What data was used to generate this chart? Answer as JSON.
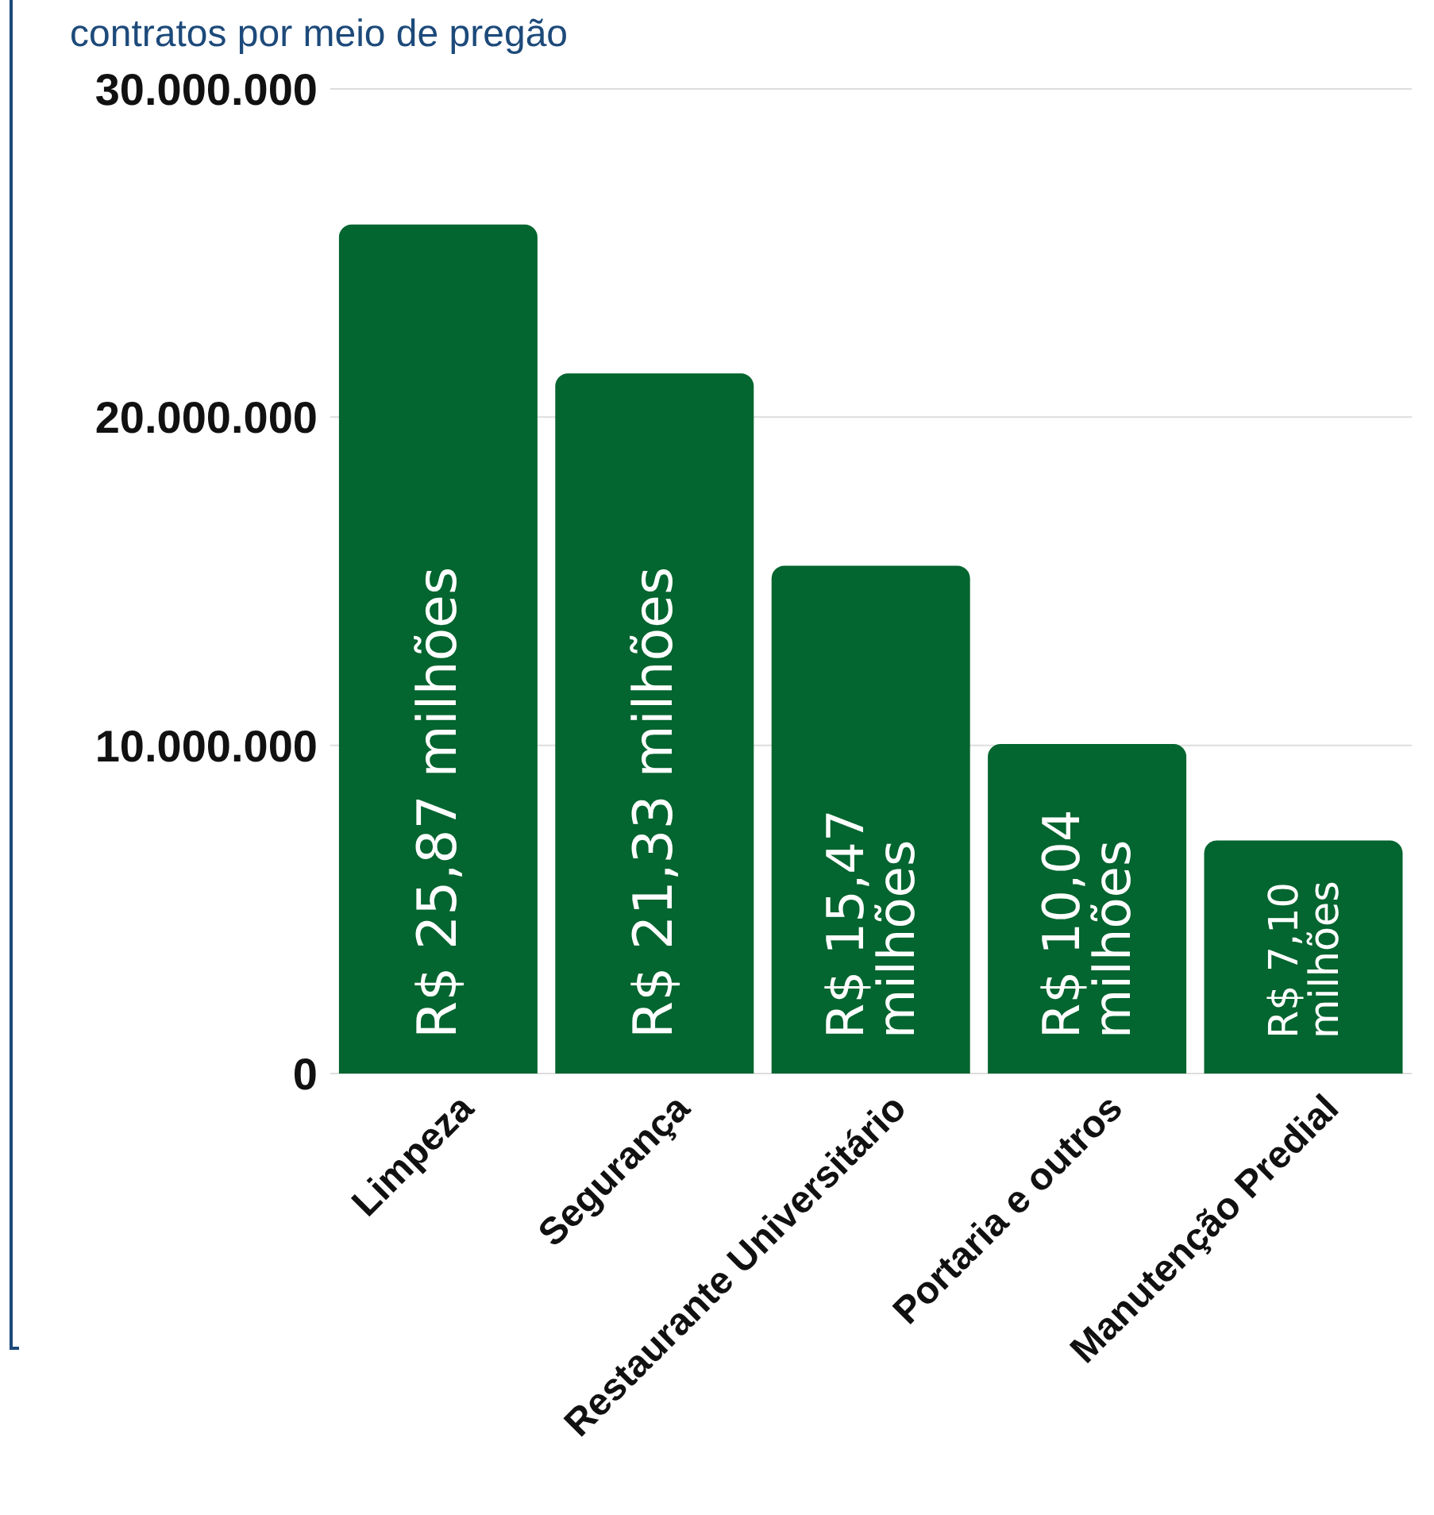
{
  "chart_data": {
    "type": "bar",
    "title": "contratos por meio de pregão",
    "categories": [
      "Limpeza",
      "Segurança",
      "Restaurante Universitário",
      "Portaria e outros",
      "Manutenção Predial"
    ],
    "values": [
      25870000,
      21330000,
      15470000,
      10040000,
      7100000
    ],
    "value_labels": [
      "R$ 25,87 milhões",
      "R$ 21,33 milhões",
      "R$ 15,47 milhões",
      "R$ 10,04 milhões",
      "R$ 7,10 milhões"
    ],
    "color": "#03652f",
    "ylim": [
      0,
      30000000
    ],
    "yticks": [
      0,
      {
        "value": 10000000,
        "label": "10.000.000"
      },
      {
        "value": 20000000,
        "label": "20.000.000"
      },
      {
        "value": 30000000,
        "label": "30.000.000"
      }
    ],
    "grid": "y"
  }
}
